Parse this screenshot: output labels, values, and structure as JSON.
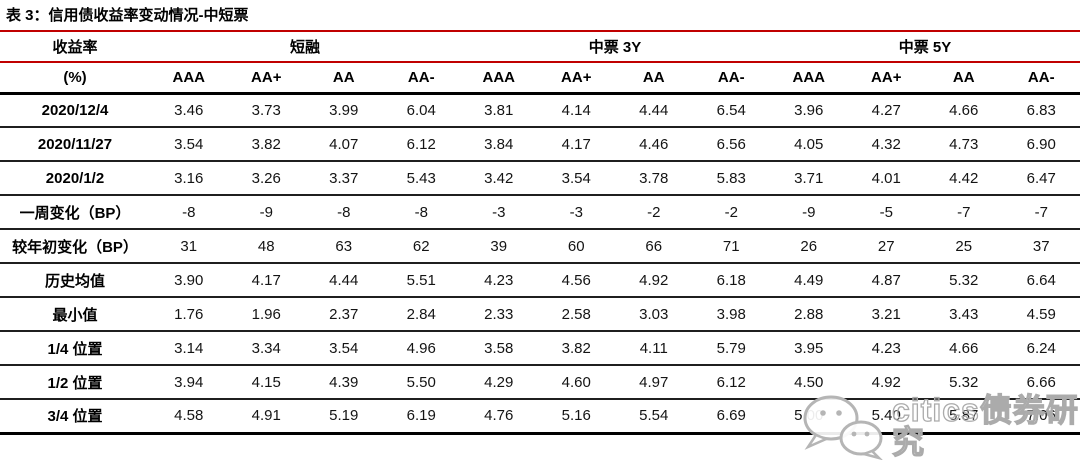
{
  "title": "表 3：信用债收益率变动情况-中短票",
  "colors": {
    "accent_red": "#c00000",
    "line_black": "#000000",
    "watermark_gray": "#b5b5b5"
  },
  "watermark": {
    "icon": "wechat-icon",
    "text": "citics债券研究"
  },
  "table": {
    "group_headers": [
      {
        "label": "收益率",
        "colspan": 1
      },
      {
        "label": "短融",
        "colspan": 4
      },
      {
        "label": "中票 3Y",
        "colspan": 4
      },
      {
        "label": "中票 5Y",
        "colspan": 4
      }
    ],
    "col_headers": [
      "(%)",
      "AAA",
      "AA+",
      "AA",
      "AA-",
      "AAA",
      "AA+",
      "AA",
      "AA-",
      "AAA",
      "AA+",
      "AA",
      "AA-"
    ],
    "rows": [
      {
        "label": "2020/12/4",
        "values": [
          "3.46",
          "3.73",
          "3.99",
          "6.04",
          "3.81",
          "4.14",
          "4.44",
          "6.54",
          "3.96",
          "4.27",
          "4.66",
          "6.83"
        ]
      },
      {
        "label": "2020/11/27",
        "values": [
          "3.54",
          "3.82",
          "4.07",
          "6.12",
          "3.84",
          "4.17",
          "4.46",
          "6.56",
          "4.05",
          "4.32",
          "4.73",
          "6.90"
        ]
      },
      {
        "label": "2020/1/2",
        "values": [
          "3.16",
          "3.26",
          "3.37",
          "5.43",
          "3.42",
          "3.54",
          "3.78",
          "5.83",
          "3.71",
          "4.01",
          "4.42",
          "6.47"
        ]
      },
      {
        "label": "一周变化（BP）",
        "values": [
          "-8",
          "-9",
          "-8",
          "-8",
          "-3",
          "-3",
          "-2",
          "-2",
          "-9",
          "-5",
          "-7",
          "-7"
        ]
      },
      {
        "label": "较年初变化（BP）",
        "values": [
          "31",
          "48",
          "63",
          "62",
          "39",
          "60",
          "66",
          "71",
          "26",
          "27",
          "25",
          "37"
        ]
      },
      {
        "label": "历史均值",
        "values": [
          "3.90",
          "4.17",
          "4.44",
          "5.51",
          "4.23",
          "4.56",
          "4.92",
          "6.18",
          "4.49",
          "4.87",
          "5.32",
          "6.64"
        ]
      },
      {
        "label": "最小值",
        "values": [
          "1.76",
          "1.96",
          "2.37",
          "2.84",
          "2.33",
          "2.58",
          "3.03",
          "3.98",
          "2.88",
          "3.21",
          "3.43",
          "4.59"
        ]
      },
      {
        "label": "1/4 位置",
        "values": [
          "3.14",
          "3.34",
          "3.54",
          "4.96",
          "3.58",
          "3.82",
          "4.11",
          "5.79",
          "3.95",
          "4.23",
          "4.66",
          "6.24"
        ]
      },
      {
        "label": "1/2 位置",
        "values": [
          "3.94",
          "4.15",
          "4.39",
          "5.50",
          "4.29",
          "4.60",
          "4.97",
          "6.12",
          "4.50",
          "4.92",
          "5.32",
          "6.66"
        ]
      },
      {
        "label": "3/4 位置",
        "values": [
          "4.58",
          "4.91",
          "5.19",
          "6.19",
          "4.76",
          "5.16",
          "5.54",
          "6.69",
          "5.00",
          "5.40",
          "5.87",
          "7.06"
        ]
      }
    ]
  }
}
